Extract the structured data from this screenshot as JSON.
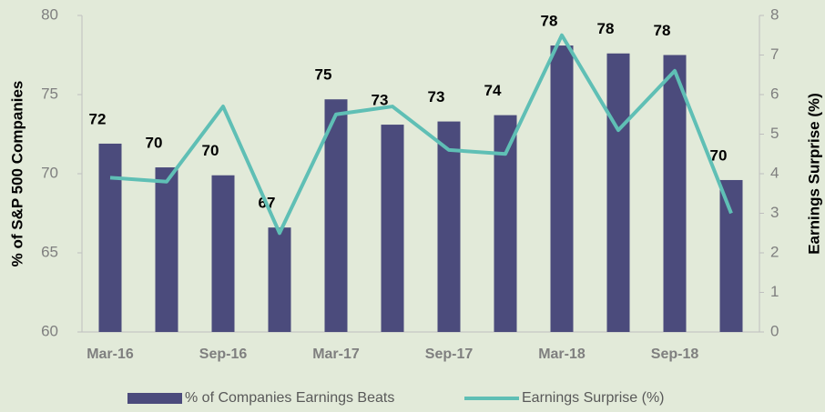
{
  "chart_data": {
    "type": "bar_line",
    "categories": [
      "Mar-16",
      null,
      "Sep-16",
      null,
      "Mar-17",
      null,
      "Sep-17",
      null,
      "Mar-18",
      null,
      "Sep-18",
      null
    ],
    "ylabel": "% of S&P 500 Companies",
    "y2label": "Earnings Surprise (%)",
    "ylim": [
      60,
      80
    ],
    "yticks": [
      60,
      65,
      70,
      75,
      80
    ],
    "y2lim": [
      0,
      8
    ],
    "y2ticks": [
      0,
      1,
      2,
      3,
      4,
      5,
      6,
      7,
      8
    ],
    "series": [
      {
        "name": "% of Companies Earnings Beats",
        "type": "bar",
        "color": "#4b4b7c",
        "values": [
          71.9,
          70.4,
          69.9,
          66.6,
          74.7,
          73.1,
          73.3,
          73.7,
          78.1,
          77.6,
          77.5,
          69.6
        ],
        "value_labels": [
          "72",
          "70",
          "70",
          "67",
          "75",
          "73",
          "73",
          "74",
          "78",
          "78",
          "78",
          "70"
        ]
      },
      {
        "name": "Earnings Surprise (%)",
        "type": "line",
        "axis": "y2",
        "color": "#5fbfb5",
        "values": [
          3.9,
          3.8,
          5.7,
          2.5,
          5.5,
          5.7,
          4.6,
          4.5,
          7.5,
          5.1,
          6.6,
          3.0
        ]
      }
    ]
  }
}
